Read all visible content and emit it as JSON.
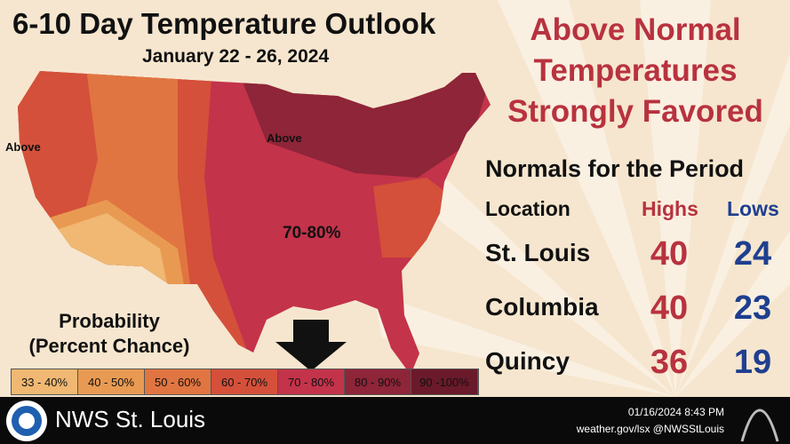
{
  "header": {
    "title": "6-10 Day Temperature Outlook",
    "subtitle": "January 22 - 26, 2024"
  },
  "headline": [
    "Above Normal",
    "Temperatures",
    "Strongly Favored"
  ],
  "map": {
    "labels": [
      "Above",
      "Above",
      "70-80%"
    ]
  },
  "legend": {
    "title": [
      "Probability",
      "(Percent Chance)"
    ],
    "items": [
      {
        "label": "33 - 40%",
        "color": "#f0b872"
      },
      {
        "label": "40 - 50%",
        "color": "#e99a52"
      },
      {
        "label": "50 - 60%",
        "color": "#e07541"
      },
      {
        "label": "60 - 70%",
        "color": "#d4503a"
      },
      {
        "label": "70 - 80%",
        "color": "#c3334a"
      },
      {
        "label": "80 - 90%",
        "color": "#8e2538"
      },
      {
        "label": "90 -100%",
        "color": "#6a1a2a"
      }
    ]
  },
  "normals": {
    "title": "Normals for the Period",
    "columns": [
      "Location",
      "Highs",
      "Lows"
    ],
    "rows": [
      [
        "St. Louis",
        40,
        24
      ],
      [
        "Columbia",
        40,
        23
      ],
      [
        "Quincy",
        36,
        19
      ]
    ]
  },
  "footer": {
    "office": "NWS St. Louis",
    "timestamp": "01/16/2024 8:43 PM",
    "contact": "weather.gov/lsx @NWSStLouis"
  }
}
